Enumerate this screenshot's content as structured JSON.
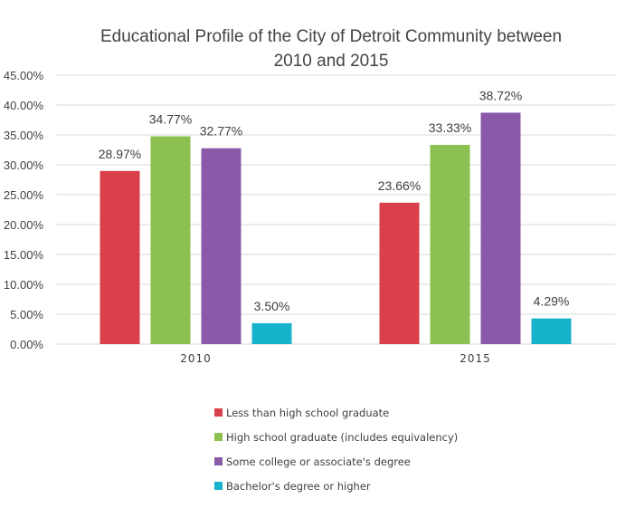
{
  "chart_data": {
    "type": "bar",
    "title": "Educational Profile of the City of Detroit Community between 2010 and 2015",
    "title_lines": [
      "Educational Profile  of the City of Detroit Community between",
      "2010 and 2015"
    ],
    "categories": [
      "2010",
      "2015"
    ],
    "series": [
      {
        "name": "Less than high school graduate",
        "values": [
          28.97,
          23.66
        ],
        "labels": [
          "28.97%",
          "23.66%"
        ],
        "color": "#d9404a"
      },
      {
        "name": "High school graduate (includes equivalency)",
        "values": [
          34.77,
          33.33
        ],
        "labels": [
          "34.77%",
          "33.33%"
        ],
        "color": "#8cc152"
      },
      {
        "name": "Some college or associate's degree",
        "values": [
          32.77,
          38.72
        ],
        "labels": [
          "32.77%",
          "38.72%"
        ],
        "color": "#8a5aa8"
      },
      {
        "name": "Bachelor's degree or higher",
        "values": [
          3.5,
          4.29
        ],
        "labels": [
          "3.50%",
          "4.29%"
        ],
        "color": "#17b3cc"
      }
    ],
    "yticks": [
      "0.00%",
      "5.00%",
      "10.00%",
      "15.00%",
      "20.00%",
      "25.00%",
      "30.00%",
      "35.00%",
      "40.00%",
      "45.00%"
    ],
    "ylim": [
      0,
      45
    ],
    "xlabel": "",
    "ylabel": "",
    "grid": true,
    "legend_position": "bottom"
  }
}
